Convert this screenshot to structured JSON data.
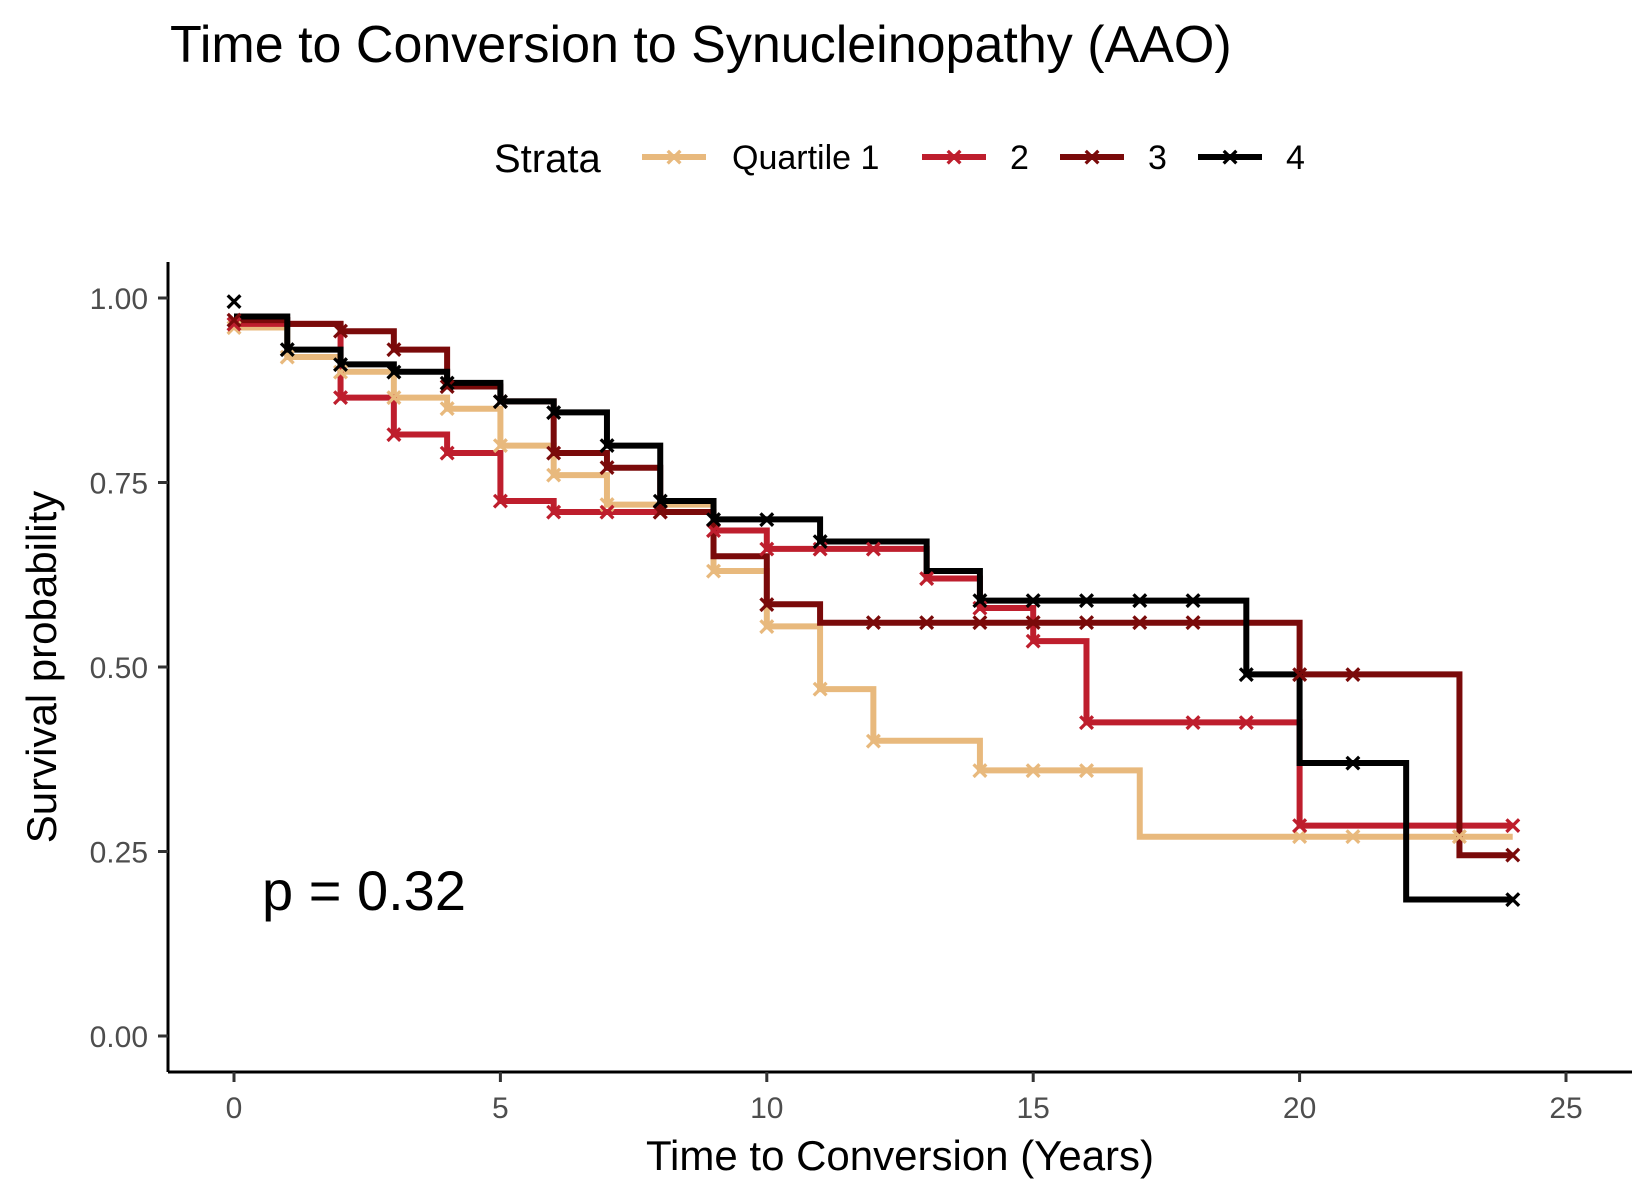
{
  "chart_data": {
    "type": "line",
    "subtype": "kaplan-meier step",
    "title": "Time to Conversion to Synucleinopathy (AAO)",
    "xlabel": "Time to Conversion (Years)",
    "ylabel": "Survival probability",
    "xlim": [
      0,
      25
    ],
    "ylim": [
      0,
      1
    ],
    "xticks": [
      0,
      5,
      10,
      15,
      20,
      25
    ],
    "yticks": [
      0,
      0.25,
      0.5,
      0.75,
      1
    ],
    "xtick_labels": [
      "0",
      "5",
      "10",
      "15",
      "20",
      "25"
    ],
    "ytick_labels": [
      "0.00",
      "0.25",
      "0.50",
      "0.75",
      "1.00"
    ],
    "legend": {
      "title": "Strata",
      "position": "top",
      "labels": [
        "Quartile 1",
        "2",
        "3",
        "4"
      ]
    },
    "annotation": "p = 0.32",
    "censor_marker": "×",
    "grid": false,
    "series": [
      {
        "color": "#e8b97d",
        "steps": [
          [
            0,
            0.96
          ],
          [
            1,
            0.92
          ],
          [
            2,
            0.9
          ],
          [
            3,
            0.865
          ],
          [
            4,
            0.85
          ],
          [
            5,
            0.8
          ],
          [
            6,
            0.76
          ],
          [
            7,
            0.72
          ],
          [
            8,
            0.72
          ],
          [
            9,
            0.63
          ],
          [
            10,
            0.555
          ],
          [
            11,
            0.47
          ],
          [
            12,
            0.4
          ],
          [
            14,
            0.36
          ],
          [
            17,
            0.27
          ],
          [
            24,
            0.27
          ]
        ],
        "censored": [
          [
            0,
            0.96
          ],
          [
            1,
            0.92
          ],
          [
            2,
            0.9
          ],
          [
            3,
            0.865
          ],
          [
            4,
            0.85
          ],
          [
            5,
            0.8
          ],
          [
            6,
            0.76
          ],
          [
            7,
            0.72
          ],
          [
            9,
            0.63
          ],
          [
            10,
            0.555
          ],
          [
            11,
            0.47
          ],
          [
            12,
            0.4
          ],
          [
            14,
            0.36
          ],
          [
            15,
            0.36
          ],
          [
            16,
            0.36
          ],
          [
            20,
            0.27
          ],
          [
            21,
            0.27
          ],
          [
            23,
            0.27
          ]
        ]
      },
      {
        "color": "#be1e2d",
        "steps": [
          [
            0,
            0.965
          ],
          [
            2,
            0.865
          ],
          [
            3,
            0.815
          ],
          [
            4,
            0.79
          ],
          [
            5,
            0.725
          ],
          [
            6,
            0.71
          ],
          [
            8,
            0.71
          ],
          [
            9,
            0.685
          ],
          [
            10,
            0.66
          ],
          [
            13,
            0.62
          ],
          [
            14,
            0.58
          ],
          [
            15,
            0.535
          ],
          [
            16,
            0.425
          ],
          [
            20,
            0.285
          ],
          [
            24,
            0.285
          ]
        ],
        "censored": [
          [
            0,
            0.965
          ],
          [
            2,
            0.865
          ],
          [
            3,
            0.815
          ],
          [
            4,
            0.79
          ],
          [
            5,
            0.725
          ],
          [
            6,
            0.71
          ],
          [
            7,
            0.71
          ],
          [
            8,
            0.71
          ],
          [
            9,
            0.685
          ],
          [
            10,
            0.66
          ],
          [
            11,
            0.66
          ],
          [
            12,
            0.66
          ],
          [
            13,
            0.62
          ],
          [
            14,
            0.58
          ],
          [
            15,
            0.535
          ],
          [
            16,
            0.425
          ],
          [
            18,
            0.425
          ],
          [
            19,
            0.425
          ],
          [
            20,
            0.285
          ],
          [
            24,
            0.285
          ]
        ]
      },
      {
        "color": "#7a0a0a",
        "steps": [
          [
            0,
            0.97
          ],
          [
            1,
            0.965
          ],
          [
            2,
            0.955
          ],
          [
            3,
            0.93
          ],
          [
            4,
            0.88
          ],
          [
            5,
            0.86
          ],
          [
            6,
            0.79
          ],
          [
            7,
            0.77
          ],
          [
            8,
            0.71
          ],
          [
            9,
            0.65
          ],
          [
            10,
            0.585
          ],
          [
            11,
            0.56
          ],
          [
            20,
            0.49
          ],
          [
            23,
            0.245
          ],
          [
            24,
            0.245
          ]
        ],
        "censored": [
          [
            0,
            0.97
          ],
          [
            2,
            0.955
          ],
          [
            3,
            0.93
          ],
          [
            4,
            0.88
          ],
          [
            5,
            0.86
          ],
          [
            6,
            0.79
          ],
          [
            7,
            0.77
          ],
          [
            8,
            0.71
          ],
          [
            10,
            0.585
          ],
          [
            12,
            0.56
          ],
          [
            13,
            0.56
          ],
          [
            14,
            0.56
          ],
          [
            15,
            0.56
          ],
          [
            16,
            0.56
          ],
          [
            17,
            0.56
          ],
          [
            18,
            0.56
          ],
          [
            20,
            0.49
          ],
          [
            21,
            0.49
          ],
          [
            24,
            0.245
          ]
        ]
      },
      {
        "color": "#000000",
        "steps": [
          [
            0,
            0.975
          ],
          [
            1,
            0.93
          ],
          [
            2,
            0.91
          ],
          [
            3,
            0.9
          ],
          [
            4,
            0.885
          ],
          [
            5,
            0.86
          ],
          [
            6,
            0.845
          ],
          [
            7,
            0.8
          ],
          [
            8,
            0.725
          ],
          [
            9,
            0.7
          ],
          [
            11,
            0.67
          ],
          [
            13,
            0.63
          ],
          [
            14,
            0.59
          ],
          [
            19,
            0.49
          ],
          [
            20,
            0.37
          ],
          [
            22,
            0.185
          ],
          [
            24,
            0.185
          ]
        ],
        "censored": [
          [
            0,
            0.995
          ],
          [
            1,
            0.93
          ],
          [
            2,
            0.91
          ],
          [
            3,
            0.9
          ],
          [
            4,
            0.885
          ],
          [
            5,
            0.86
          ],
          [
            6,
            0.845
          ],
          [
            7,
            0.8
          ],
          [
            8,
            0.725
          ],
          [
            9,
            0.7
          ],
          [
            10,
            0.7
          ],
          [
            11,
            0.67
          ],
          [
            14,
            0.59
          ],
          [
            15,
            0.59
          ],
          [
            16,
            0.59
          ],
          [
            17,
            0.59
          ],
          [
            18,
            0.59
          ],
          [
            19,
            0.49
          ],
          [
            21,
            0.37
          ],
          [
            24,
            0.185
          ]
        ]
      }
    ]
  }
}
